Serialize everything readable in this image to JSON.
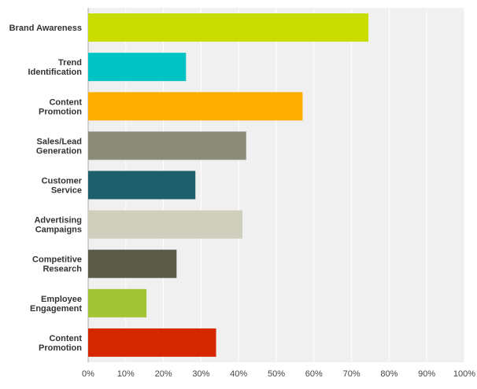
{
  "chart_data": {
    "type": "bar",
    "orientation": "horizontal",
    "title": "",
    "xlabel": "",
    "ylabel": "",
    "xlim": [
      0,
      100
    ],
    "grid": true,
    "categories": [
      [
        "Brand Awareness"
      ],
      [
        "Trend",
        "Identification"
      ],
      [
        "Content",
        "Promotion"
      ],
      [
        "Sales/Lead",
        "Generation"
      ],
      [
        "Customer",
        "Service"
      ],
      [
        "Advertising",
        "Campaigns"
      ],
      [
        "Competitive",
        "Research"
      ],
      [
        "Employee",
        "Engagement"
      ],
      [
        "Content",
        "Promotion"
      ]
    ],
    "values": [
      74.5,
      26,
      57,
      42,
      28.5,
      41,
      23.5,
      15.5,
      34
    ],
    "colors": [
      "#c8dc00",
      "#00c4c4",
      "#ffae00",
      "#8b8d7a",
      "#1e5f6e",
      "#d0cfbd",
      "#5a5b48",
      "#a3c535",
      "#d62800"
    ],
    "ticks": [
      "0%",
      "10%",
      "20%",
      "30%",
      "40%",
      "50%",
      "60%",
      "70%",
      "80%",
      "90%",
      "100%"
    ]
  }
}
